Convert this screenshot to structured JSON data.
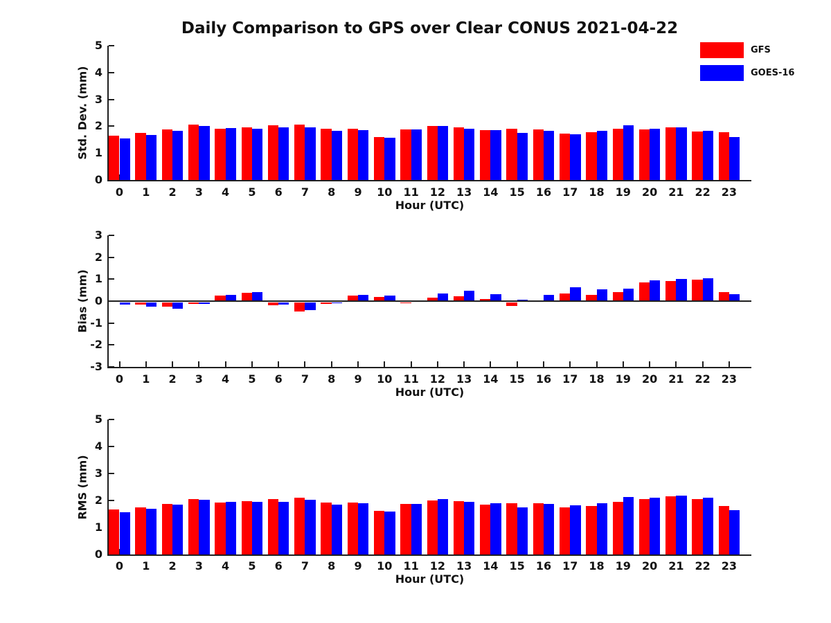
{
  "title": "Daily Comparison to GPS over Clear CONUS 2021-04-22",
  "xlabel": "Hour (UTC)",
  "colors": {
    "gfs": "#ff0000",
    "goes16": "#0000ff",
    "axis": "#1f1f1f"
  },
  "legend": {
    "position": "top-right",
    "items": [
      {
        "label": "GFS",
        "color": "#ff0000"
      },
      {
        "label": "GOES-16",
        "color": "#0000ff"
      }
    ]
  },
  "chart_data": [
    {
      "type": "bar",
      "panel": "std-dev",
      "title": "",
      "xlabel": "Hour (UTC)",
      "ylabel": "Std. Dev. (mm)",
      "ylim": [
        0,
        5
      ],
      "yticks": [
        0,
        1,
        2,
        3,
        4,
        5
      ],
      "grid": false,
      "legend_position": "outside-top-right",
      "categories": [
        0,
        1,
        2,
        3,
        4,
        5,
        6,
        7,
        8,
        9,
        10,
        11,
        12,
        13,
        14,
        15,
        16,
        17,
        18,
        19,
        20,
        21,
        22,
        23
      ],
      "series": [
        {
          "name": "GFS",
          "color": "#ff0000",
          "values": [
            1.65,
            1.75,
            1.88,
            2.05,
            1.9,
            1.95,
            2.04,
            2.06,
            1.9,
            1.9,
            1.6,
            1.87,
            2.0,
            1.95,
            1.85,
            1.9,
            1.88,
            1.73,
            1.78,
            1.92,
            1.87,
            1.96,
            1.8,
            1.78
          ]
        },
        {
          "name": "GOES-16",
          "color": "#0000ff",
          "values": [
            1.55,
            1.68,
            1.82,
            2.02,
            1.93,
            1.9,
            1.95,
            1.96,
            1.83,
            1.86,
            1.58,
            1.87,
            2.02,
            1.92,
            1.86,
            1.76,
            1.83,
            1.7,
            1.83,
            2.04,
            1.9,
            1.96,
            1.82,
            1.6
          ]
        }
      ]
    },
    {
      "type": "bar",
      "panel": "bias",
      "title": "",
      "xlabel": "Hour (UTC)",
      "ylabel": "Bias (mm)",
      "ylim": [
        -3,
        3
      ],
      "yticks": [
        -3,
        -2,
        -1,
        0,
        1,
        2,
        3
      ],
      "grid": false,
      "categories": [
        0,
        1,
        2,
        3,
        4,
        5,
        6,
        7,
        8,
        9,
        10,
        11,
        12,
        13,
        14,
        15,
        16,
        17,
        18,
        19,
        20,
        21,
        22,
        23
      ],
      "series": [
        {
          "name": "GFS",
          "color": "#ff0000",
          "values": [
            0.03,
            -0.08,
            -0.2,
            -0.05,
            0.25,
            0.38,
            -0.13,
            -0.4,
            -0.06,
            0.25,
            0.2,
            -0.04,
            0.17,
            0.22,
            0.08,
            -0.15,
            0.02,
            0.36,
            0.27,
            0.4,
            0.86,
            0.93,
            0.98,
            0.4
          ]
        },
        {
          "name": "GOES-16",
          "color": "#0000ff",
          "values": [
            -0.1,
            -0.2,
            -0.28,
            -0.06,
            0.27,
            0.4,
            -0.1,
            -0.35,
            -0.03,
            0.28,
            0.25,
            0.03,
            0.35,
            0.48,
            0.33,
            0.05,
            0.27,
            0.64,
            0.55,
            0.58,
            0.95,
            1.0,
            1.05,
            0.33
          ]
        }
      ]
    },
    {
      "type": "bar",
      "panel": "rms",
      "title": "",
      "xlabel": "Hour (UTC)",
      "ylabel": "RMS (mm)",
      "ylim": [
        0,
        5
      ],
      "yticks": [
        0,
        1,
        2,
        3,
        4,
        5
      ],
      "grid": false,
      "categories": [
        0,
        1,
        2,
        3,
        4,
        5,
        6,
        7,
        8,
        9,
        10,
        11,
        12,
        13,
        14,
        15,
        16,
        17,
        18,
        19,
        20,
        21,
        22,
        23
      ],
      "series": [
        {
          "name": "GFS",
          "color": "#ff0000",
          "values": [
            1.66,
            1.75,
            1.88,
            2.06,
            1.92,
            1.97,
            2.05,
            2.09,
            1.92,
            1.92,
            1.62,
            1.87,
            2.0,
            1.97,
            1.85,
            1.9,
            1.9,
            1.75,
            1.8,
            1.94,
            2.05,
            2.15,
            2.05,
            1.8
          ]
        },
        {
          "name": "GOES-16",
          "color": "#0000ff",
          "values": [
            1.57,
            1.68,
            1.84,
            2.03,
            1.95,
            1.96,
            1.95,
            2.02,
            1.85,
            1.89,
            1.6,
            1.87,
            2.04,
            1.96,
            1.89,
            1.75,
            1.88,
            1.82,
            1.89,
            2.12,
            2.1,
            2.17,
            2.1,
            1.64
          ]
        }
      ]
    }
  ]
}
